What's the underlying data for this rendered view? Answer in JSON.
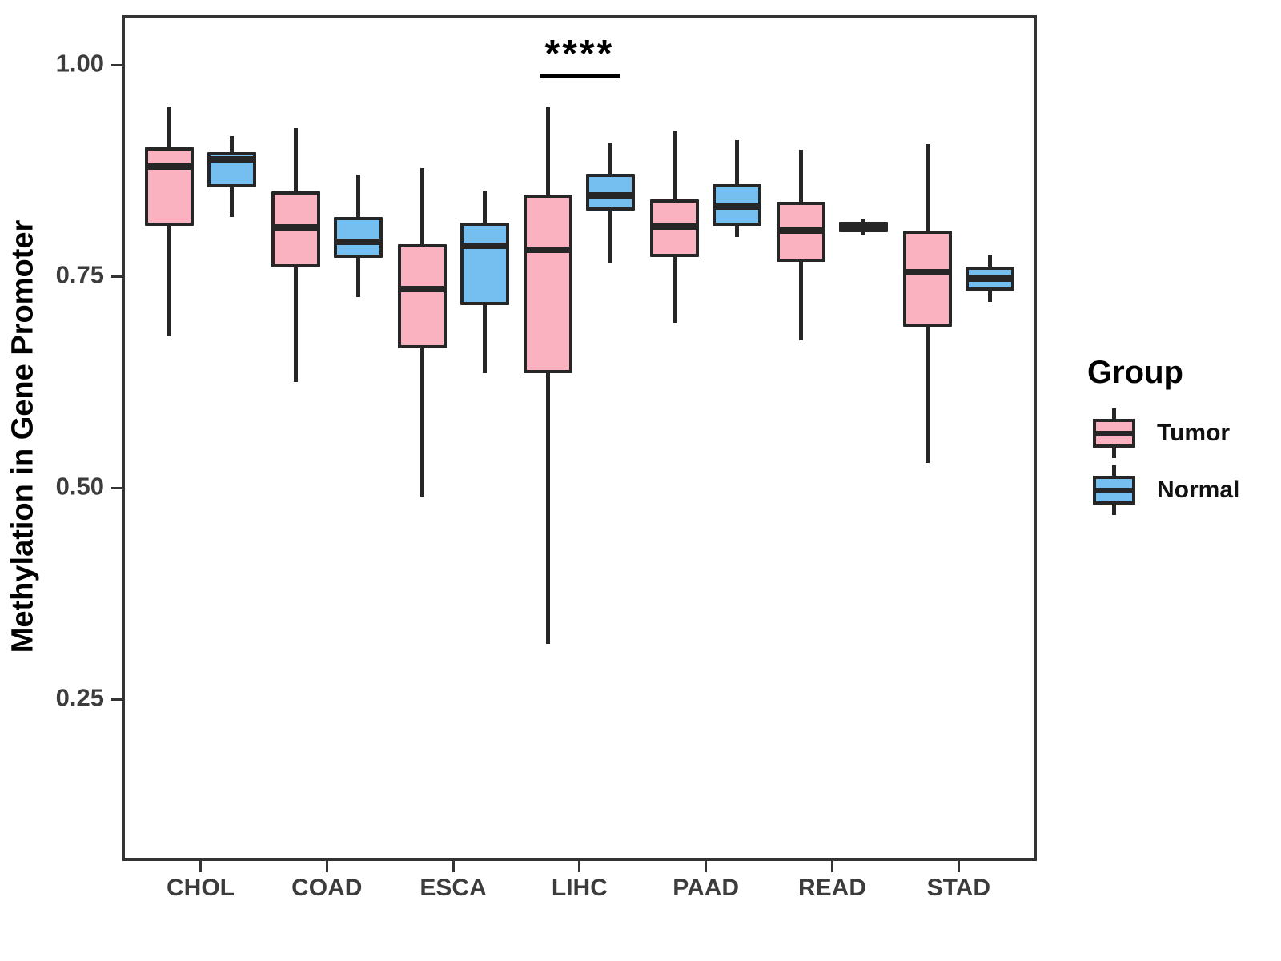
{
  "chart_data": {
    "type": "boxplot",
    "title": "",
    "xlabel": "",
    "ylabel": "Methylation in Gene Promoter",
    "ylim_shown": [
      0.06,
      1.06
    ],
    "grid": "off",
    "yticks": [
      {
        "label": "1.00",
        "value": 1.0
      },
      {
        "label": "0.75",
        "value": 0.75
      },
      {
        "label": "0.50",
        "value": 0.5
      },
      {
        "label": "0.25",
        "value": 0.25
      }
    ],
    "categories": [
      "CHOL",
      "COAD",
      "ESCA",
      "LIHC",
      "PAAD",
      "READ",
      "STAD"
    ],
    "series": [
      {
        "name": "Tumor",
        "color": "#FAB2C1",
        "boxes": [
          {
            "min": 0.68,
            "q1": 0.81,
            "median": 0.88,
            "q3": 0.902,
            "max": 0.95
          },
          {
            "min": 0.625,
            "q1": 0.76,
            "median": 0.808,
            "q3": 0.85,
            "max": 0.925
          },
          {
            "min": 0.49,
            "q1": 0.665,
            "median": 0.735,
            "q3": 0.788,
            "max": 0.878
          },
          {
            "min": 0.315,
            "q1": 0.635,
            "median": 0.781,
            "q3": 0.847,
            "max": 0.95
          },
          {
            "min": 0.695,
            "q1": 0.773,
            "median": 0.809,
            "q3": 0.841,
            "max": 0.922
          },
          {
            "min": 0.674,
            "q1": 0.767,
            "median": 0.804,
            "q3": 0.838,
            "max": 0.9
          },
          {
            "min": 0.529,
            "q1": 0.69,
            "median": 0.755,
            "q3": 0.804,
            "max": 0.906
          }
        ]
      },
      {
        "name": "Normal",
        "color": "#74BFF0",
        "boxes": [
          {
            "min": 0.82,
            "q1": 0.855,
            "median": 0.888,
            "q3": 0.897,
            "max": 0.916
          },
          {
            "min": 0.725,
            "q1": 0.772,
            "median": 0.791,
            "q3": 0.82,
            "max": 0.87
          },
          {
            "min": 0.635,
            "q1": 0.716,
            "median": 0.786,
            "q3": 0.813,
            "max": 0.85
          },
          {
            "min": 0.766,
            "q1": 0.828,
            "median": 0.846,
            "q3": 0.871,
            "max": 0.908
          },
          {
            "min": 0.796,
            "q1": 0.81,
            "median": 0.832,
            "q3": 0.859,
            "max": 0.911
          },
          {
            "min": 0.798,
            "q1": 0.802,
            "median": 0.808,
            "q3": 0.814,
            "max": 0.817
          },
          {
            "min": 0.72,
            "q1": 0.733,
            "median": 0.747,
            "q3": 0.761,
            "max": 0.775
          }
        ]
      }
    ],
    "annotations": [
      {
        "label": "****",
        "category": "LIHC",
        "y": 0.99
      }
    ],
    "legend": {
      "title": "Group",
      "position": "right",
      "entries": [
        "Tumor",
        "Normal"
      ]
    },
    "style_colors": {
      "box_border": "#262626",
      "axis_text": "#3C3C3C",
      "axis_title": "#000000",
      "panel_border": "#333333"
    }
  }
}
